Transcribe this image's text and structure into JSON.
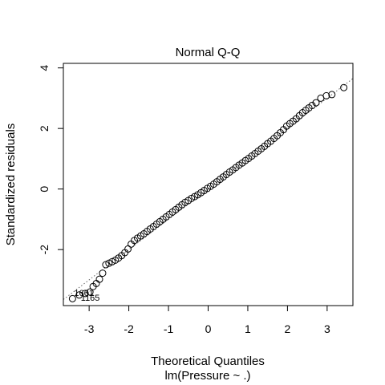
{
  "chart_data": {
    "type": "scatter",
    "title": "Normal Q-Q",
    "xlabel": "Theoretical Quantiles",
    "subtitle": "lm(Pressure ~ .)",
    "ylabel": "Standardized residuals",
    "xlim": [
      -3.65,
      3.65
    ],
    "ylim": [
      -3.85,
      4.15
    ],
    "xticks": [
      -3,
      -2,
      -1,
      0,
      1,
      2,
      3
    ],
    "yticks": [
      -2,
      0,
      2,
      4
    ],
    "grid": false,
    "reference_line": {
      "intercept": 0.0,
      "slope": 1.0,
      "style": "dotted"
    },
    "point_labels": [
      {
        "text": "1661",
        "x": -3.42,
        "y": -3.42
      },
      {
        "text": "1165",
        "x": -3.25,
        "y": -3.58
      }
    ],
    "points": {
      "x": [
        -3.42,
        -3.25,
        -3.1,
        -2.98,
        -2.9,
        -2.82,
        -2.74,
        -2.66,
        -2.58,
        -2.5,
        -2.42,
        -2.34,
        -2.26,
        -2.18,
        -2.1,
        -2.02,
        -1.94,
        -1.86,
        -1.78,
        -1.7,
        -1.62,
        -1.54,
        -1.46,
        -1.38,
        -1.3,
        -1.22,
        -1.14,
        -1.06,
        -0.98,
        -0.9,
        -0.82,
        -0.74,
        -0.66,
        -0.58,
        -0.5,
        -0.42,
        -0.34,
        -0.26,
        -0.18,
        -0.1,
        -0.02,
        0.06,
        0.14,
        0.22,
        0.3,
        0.38,
        0.46,
        0.54,
        0.62,
        0.7,
        0.78,
        0.86,
        0.94,
        1.02,
        1.1,
        1.18,
        1.26,
        1.34,
        1.42,
        1.5,
        1.58,
        1.66,
        1.74,
        1.82,
        1.9,
        1.98,
        2.06,
        2.14,
        2.22,
        2.3,
        2.38,
        2.46,
        2.54,
        2.62,
        2.72,
        2.84,
        2.98,
        3.12,
        3.42
      ],
      "y": [
        -3.62,
        -3.5,
        -3.45,
        -3.4,
        -3.22,
        -3.12,
        -2.98,
        -2.78,
        -2.5,
        -2.45,
        -2.4,
        -2.35,
        -2.28,
        -2.2,
        -2.1,
        -1.98,
        -1.82,
        -1.7,
        -1.62,
        -1.55,
        -1.48,
        -1.4,
        -1.32,
        -1.24,
        -1.16,
        -1.08,
        -1.0,
        -0.92,
        -0.84,
        -0.76,
        -0.68,
        -0.6,
        -0.52,
        -0.44,
        -0.38,
        -0.31,
        -0.25,
        -0.19,
        -0.12,
        -0.05,
        0.02,
        0.09,
        0.16,
        0.24,
        0.32,
        0.4,
        0.48,
        0.56,
        0.63,
        0.71,
        0.79,
        0.86,
        0.94,
        1.01,
        1.09,
        1.17,
        1.25,
        1.33,
        1.41,
        1.5,
        1.58,
        1.67,
        1.76,
        1.86,
        1.96,
        2.08,
        2.16,
        2.24,
        2.32,
        2.42,
        2.52,
        2.6,
        2.68,
        2.76,
        2.85,
        3.0,
        3.08,
        3.12,
        3.35
      ]
    }
  }
}
